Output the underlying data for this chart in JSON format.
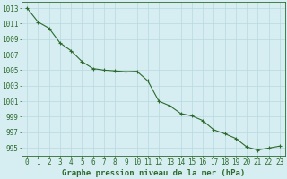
{
  "x": [
    0,
    1,
    2,
    3,
    4,
    5,
    6,
    7,
    8,
    9,
    10,
    11,
    12,
    13,
    14,
    15,
    16,
    17,
    18,
    19,
    20,
    21,
    22,
    23
  ],
  "y": [
    1013.0,
    1011.2,
    1010.4,
    1008.5,
    1007.5,
    1006.1,
    1005.2,
    1005.0,
    1004.9,
    1004.8,
    1004.85,
    1003.6,
    1001.0,
    1000.4,
    999.4,
    999.1,
    998.5,
    997.3,
    996.8,
    996.2,
    995.1,
    994.7,
    994.95,
    995.2
  ],
  "line_color": "#2d6a2d",
  "marker": "+",
  "marker_size": 3,
  "bg_color": "#d6eef2",
  "grid_color": "#b8d8e0",
  "ylabel_values": [
    995,
    997,
    999,
    1001,
    1003,
    1005,
    1007,
    1009,
    1011,
    1013
  ],
  "ylim": [
    994.0,
    1013.8
  ],
  "xlim": [
    -0.5,
    23.5
  ],
  "xlabel": "Graphe pression niveau de la mer (hPa)",
  "xlabel_color": "#2d6a2d",
  "tick_label_color": "#2d6a2d",
  "tick_fontsize": 5.5,
  "xlabel_fontsize": 6.5
}
